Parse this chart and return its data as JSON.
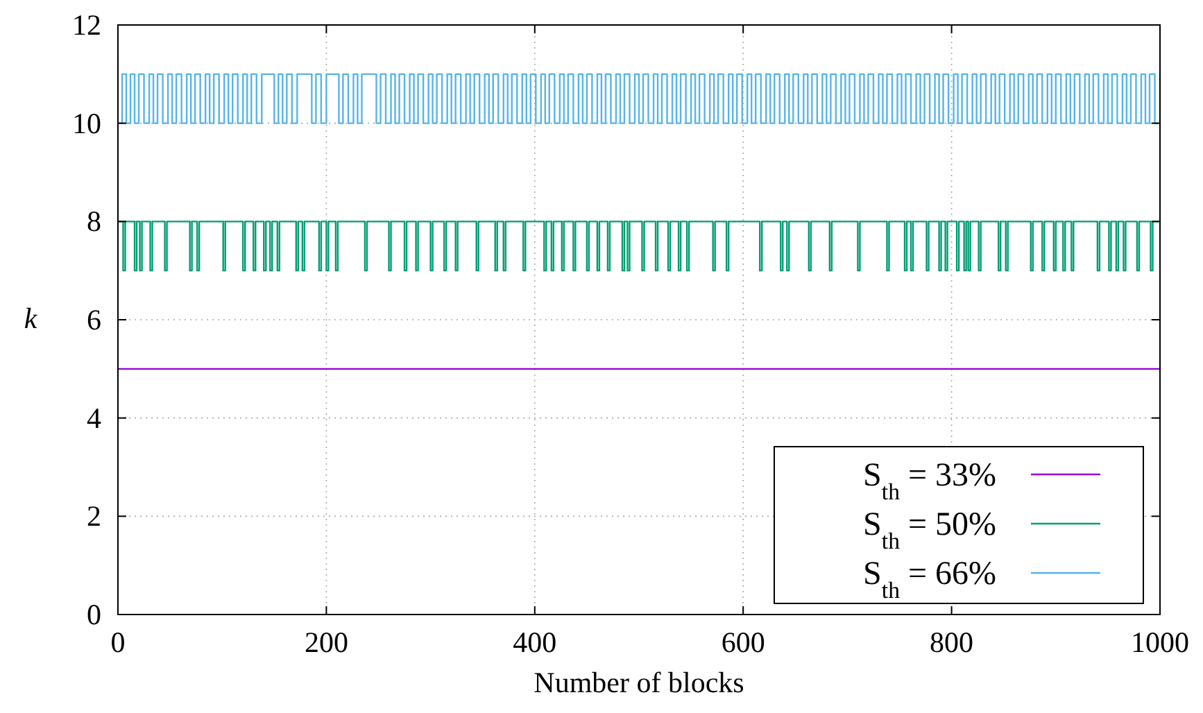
{
  "chart_data": {
    "type": "step",
    "xlabel": "Number of blocks",
    "ylabel": "k",
    "xlim": [
      0,
      1000
    ],
    "ylim": [
      0,
      12
    ],
    "xticks": [
      0,
      200,
      400,
      600,
      800,
      1000
    ],
    "yticks": [
      0,
      2,
      4,
      6,
      8,
      10,
      12
    ],
    "grid": true,
    "legend": "bottom right",
    "line_style": "solid",
    "series": [
      {
        "name": "S$_{th}$ = 33%",
        "color": "#9400d3",
        "x": [
          0,
          1000
        ],
        "values": [
          5,
          5
        ]
      },
      {
        "name": "S$_{th}$ = 50%",
        "color": "#009e73",
        "x": [
          0,
          5,
          7,
          16,
          18,
          21,
          23,
          31,
          33,
          45,
          47,
          69,
          71,
          76,
          78,
          101,
          103,
          120,
          122,
          130,
          132,
          140,
          142,
          146,
          148,
          153,
          155,
          171,
          173,
          177,
          179,
          193,
          195,
          200,
          202,
          209,
          211,
          237,
          239,
          260,
          262,
          275,
          277,
          286,
          288,
          300,
          302,
          313,
          315,
          324,
          326,
          344,
          346,
          362,
          364,
          370,
          372,
          389,
          391,
          409,
          411,
          416,
          418,
          426,
          428,
          437,
          439,
          450,
          452,
          460,
          462,
          470,
          472,
          484,
          486,
          489,
          491,
          503,
          505,
          516,
          518,
          528,
          530,
          538,
          540,
          546,
          548,
          571,
          573,
          584,
          586,
          616,
          618,
          636,
          638,
          642,
          644,
          663,
          665,
          683,
          685,
          710,
          712,
          738,
          740,
          755,
          757,
          761,
          763,
          776,
          778,
          788,
          790,
          794,
          796,
          805,
          807,
          812,
          814,
          816,
          818,
          826,
          828,
          845,
          847,
          852,
          854,
          876,
          878,
          887,
          889,
          898,
          900,
          907,
          909,
          915,
          917,
          940,
          942,
          951,
          953,
          958,
          960,
          965,
          967,
          978,
          980,
          991,
          993,
          1000
        ],
        "values": [
          8,
          7,
          8,
          7,
          8,
          7,
          8,
          7,
          8,
          7,
          8,
          7,
          8,
          7,
          8,
          7,
          8,
          7,
          8,
          7,
          8,
          7,
          8,
          7,
          8,
          7,
          8,
          7,
          8,
          7,
          8,
          7,
          8,
          7,
          8,
          7,
          8,
          7,
          8,
          7,
          8,
          7,
          8,
          7,
          8,
          7,
          8,
          7,
          8,
          7,
          8,
          7,
          8,
          7,
          8,
          7,
          8,
          7,
          8,
          7,
          8,
          7,
          8,
          7,
          8,
          7,
          8,
          7,
          8,
          7,
          8,
          7,
          8,
          7,
          8,
          7,
          8,
          7,
          8,
          7,
          8,
          7,
          8,
          7,
          8,
          7,
          8,
          7,
          8,
          7,
          8,
          7,
          8,
          7,
          8,
          7,
          8,
          7,
          8,
          7,
          8,
          7,
          8,
          7,
          8,
          7,
          8,
          7,
          8,
          7,
          8,
          7,
          8,
          7,
          8,
          7,
          8,
          7,
          8,
          7,
          8,
          7,
          8,
          7,
          8,
          7,
          8,
          7,
          8,
          7,
          8,
          7,
          8,
          7,
          8,
          7,
          8,
          7,
          8,
          7,
          8,
          7,
          8,
          7,
          8,
          7,
          8,
          7,
          8,
          8
        ]
      },
      {
        "name": "S$_{th}$ = 66%",
        "color": "#56b4e9",
        "x": [
          0,
          4,
          8,
          12,
          16,
          20,
          25,
          30,
          34,
          38,
          43,
          48,
          52,
          56,
          61,
          66,
          70,
          74,
          79,
          84,
          88,
          92,
          97,
          102,
          106,
          110,
          115,
          120,
          124,
          128,
          133,
          138,
          150,
          154,
          158,
          162,
          167,
          172,
          186,
          190,
          195,
          200,
          212,
          216,
          221,
          226,
          230,
          234,
          248,
          252,
          257,
          262,
          266,
          270,
          275,
          280,
          284,
          288,
          293,
          298,
          302,
          306,
          311,
          316,
          320,
          324,
          329,
          334,
          338,
          342,
          347,
          352,
          356,
          360,
          365,
          370,
          374,
          378,
          383,
          388,
          392,
          396,
          401,
          406,
          410,
          414,
          419,
          424,
          428,
          432,
          437,
          442,
          446,
          450,
          455,
          460,
          464,
          468,
          473,
          478,
          482,
          486,
          491,
          496,
          500,
          504,
          509,
          514,
          518,
          522,
          527,
          532,
          536,
          540,
          545,
          550,
          554,
          558,
          563,
          568,
          572,
          576,
          581,
          586,
          590,
          594,
          599,
          604,
          608,
          612,
          617,
          622,
          626,
          630,
          635,
          640,
          644,
          648,
          653,
          658,
          662,
          666,
          671,
          676,
          680,
          684,
          689,
          694,
          698,
          702,
          707,
          712,
          716,
          720,
          725,
          730,
          734,
          738,
          743,
          748,
          752,
          756,
          761,
          766,
          770,
          774,
          779,
          784,
          788,
          792,
          797,
          802,
          806,
          810,
          815,
          820,
          824,
          828,
          833,
          838,
          842,
          846,
          851,
          856,
          860,
          864,
          869,
          874,
          878,
          882,
          887,
          892,
          896,
          900,
          905,
          910,
          914,
          918,
          923,
          928,
          932,
          936,
          941,
          946,
          950,
          954,
          959,
          964,
          968,
          972,
          977,
          982,
          986,
          990,
          995,
          1000
        ],
        "values": [
          10,
          11,
          10,
          11,
          10,
          11,
          10,
          11,
          10,
          11,
          10,
          11,
          10,
          11,
          10,
          11,
          10,
          11,
          10,
          11,
          10,
          11,
          10,
          11,
          10,
          11,
          10,
          11,
          10,
          11,
          10,
          11,
          10,
          11,
          10,
          11,
          10,
          11,
          10,
          11,
          10,
          11,
          10,
          11,
          10,
          11,
          10,
          11,
          10,
          11,
          10,
          11,
          10,
          11,
          10,
          11,
          10,
          11,
          10,
          11,
          10,
          11,
          10,
          11,
          10,
          11,
          10,
          11,
          10,
          11,
          10,
          11,
          10,
          11,
          10,
          11,
          10,
          11,
          10,
          11,
          10,
          11,
          10,
          11,
          10,
          11,
          10,
          11,
          10,
          11,
          10,
          11,
          10,
          11,
          10,
          11,
          10,
          11,
          10,
          11,
          10,
          11,
          10,
          11,
          10,
          11,
          10,
          11,
          10,
          11,
          10,
          11,
          10,
          11,
          10,
          11,
          10,
          11,
          10,
          11,
          10,
          11,
          10,
          11,
          10,
          11,
          10,
          11,
          10,
          11,
          10,
          11,
          10,
          11,
          10,
          11,
          10,
          11,
          10,
          11,
          10,
          11,
          10,
          11,
          10,
          11,
          10,
          11,
          10,
          11,
          10,
          11,
          10,
          11,
          10,
          11,
          10,
          11,
          10,
          11,
          10,
          11,
          10,
          11,
          10,
          11,
          10,
          11,
          10,
          11,
          10,
          11,
          10,
          11,
          10,
          11,
          10,
          11,
          10,
          11,
          10,
          11,
          10,
          11,
          10,
          11,
          10,
          11,
          10,
          11,
          10,
          11,
          10,
          11,
          10,
          11,
          10,
          11,
          10,
          11,
          10,
          11,
          10,
          11,
          10,
          11,
          10,
          11,
          10,
          11,
          10,
          11,
          10,
          11,
          10,
          11
        ]
      }
    ]
  }
}
